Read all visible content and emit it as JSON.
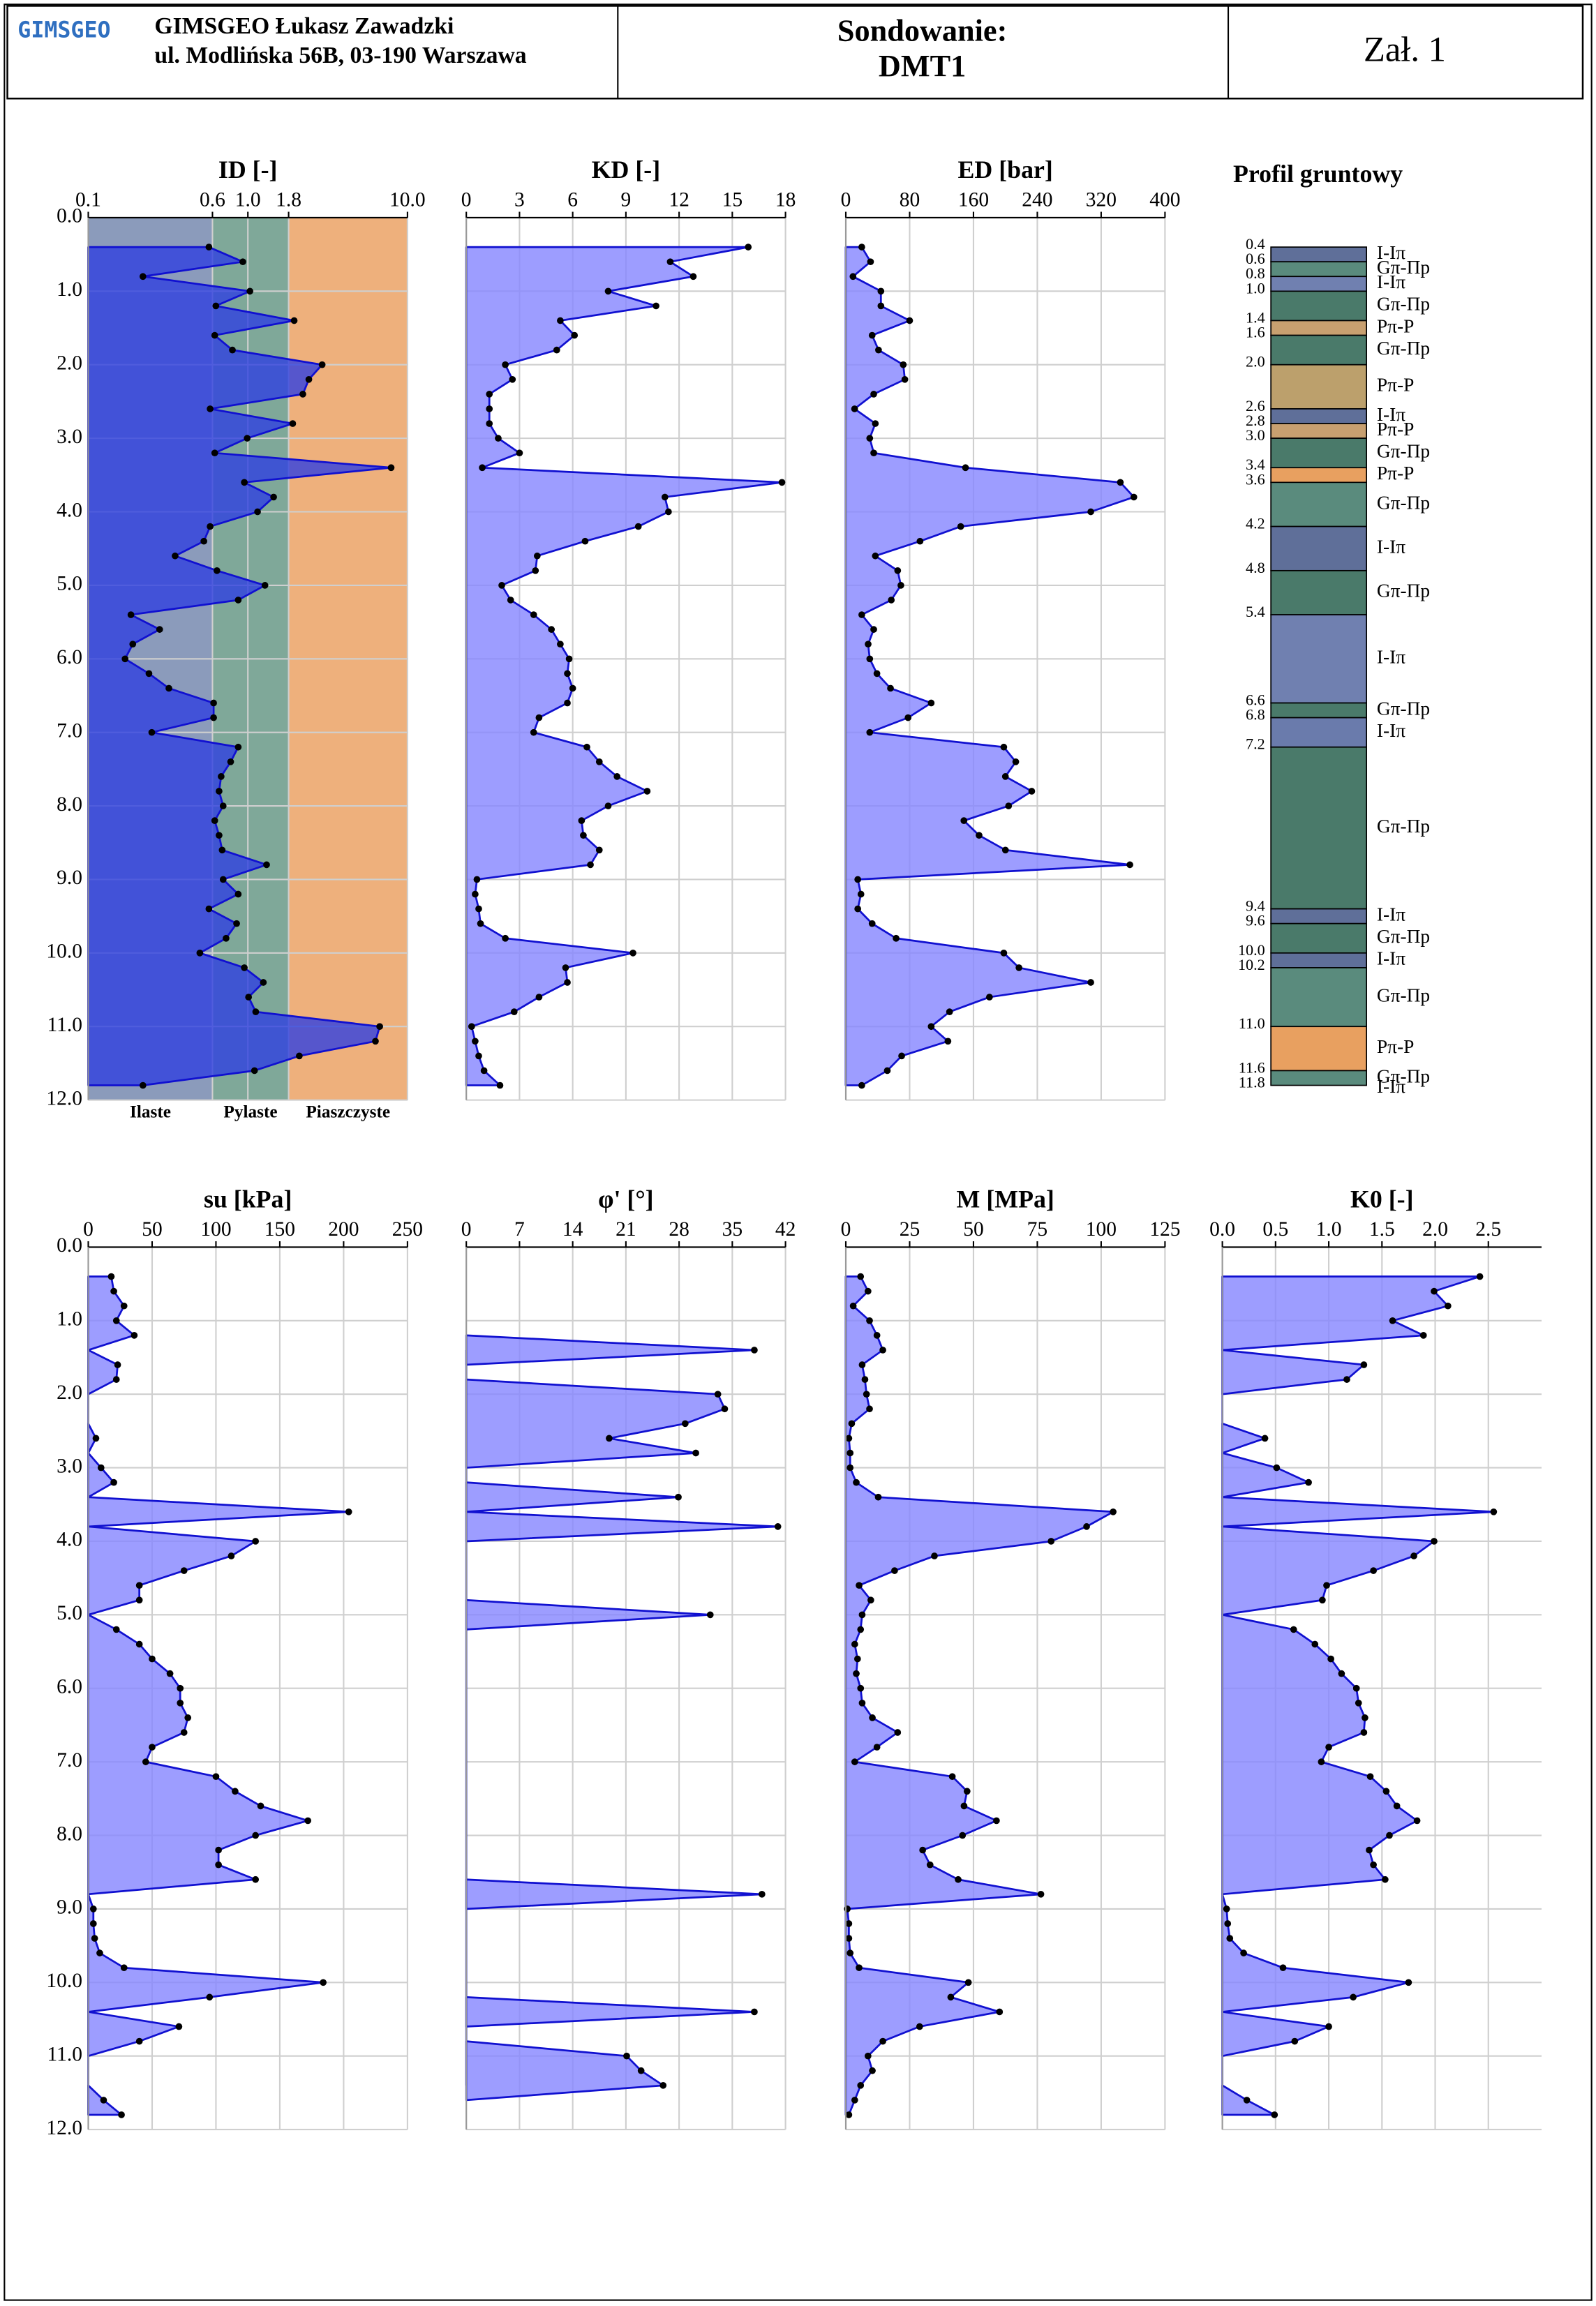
{
  "header": {
    "logo": "GIMSGEO",
    "company": "GIMSGEO Łukasz Zawadzki",
    "address": "ul. Modlińska 56B, 03-190 Warszawa",
    "title_line1": "Sondowanie:",
    "title_line2": "DMT1",
    "attachment": "Zał. 1"
  },
  "depth": {
    "values": [
      0.4,
      0.6,
      0.8,
      1.0,
      1.2,
      1.4,
      1.6,
      1.8,
      2.0,
      2.2,
      2.4,
      2.6,
      2.8,
      3.0,
      3.2,
      3.4,
      3.6,
      3.8,
      4.0,
      4.2,
      4.4,
      4.6,
      4.8,
      5.0,
      5.2,
      5.4,
      5.6,
      5.8,
      6.0,
      6.2,
      6.4,
      6.6,
      6.8,
      7.0,
      7.2,
      7.4,
      7.6,
      7.8,
      8.0,
      8.2,
      8.4,
      8.6,
      8.8,
      9.0,
      9.2,
      9.4,
      9.6,
      9.8,
      10.0,
      10.2,
      10.4,
      10.6,
      10.8,
      11.0,
      11.2,
      11.4,
      11.6,
      11.8
    ],
    "ylim": [
      0,
      12
    ],
    "yticks": [
      {
        "value": 0,
        "label": "0.0"
      },
      {
        "value": 1,
        "label": "1.0"
      },
      {
        "value": 2,
        "label": "2.0"
      },
      {
        "value": 3,
        "label": "3.0"
      },
      {
        "value": 4,
        "label": "4.0"
      },
      {
        "value": 5,
        "label": "5.0"
      },
      {
        "value": 6,
        "label": "6.0"
      },
      {
        "value": 7,
        "label": "7.0"
      },
      {
        "value": 8,
        "label": "8.0"
      },
      {
        "value": 9,
        "label": "9.0"
      },
      {
        "value": 10,
        "label": "10.0"
      },
      {
        "value": 11,
        "label": "11.0"
      },
      {
        "value": 12,
        "label": "12.0"
      }
    ]
  },
  "chart_data": [
    {
      "type": "area",
      "title": "ID [-]",
      "log_x": true,
      "xlim": [
        0.1,
        10
      ],
      "xticks": [
        0.1,
        0.6,
        {
          "value": 1,
          "label": "1.0"
        },
        1.8,
        {
          "value": 10,
          "label": "10.0"
        }
      ],
      "color": "#3040e0",
      "line_color": "#1010d0",
      "grid": true,
      "zones": [
        {
          "name": "Ilaste",
          "from": 0.1,
          "to": 0.6,
          "color": "#8b9bbb"
        },
        {
          "name": "Pylaste",
          "from": 0.6,
          "to": 1.8,
          "color": "#7fa899"
        },
        {
          "name": "Piaszczyste",
          "from": 1.8,
          "to": 10,
          "color": "#eeb07c"
        }
      ],
      "values": [
        0.57,
        0.93,
        0.22,
        1.03,
        0.63,
        1.95,
        0.62,
        0.8,
        2.92,
        2.41,
        2.21,
        0.58,
        1.91,
        0.99,
        0.62,
        7.9,
        0.95,
        1.45,
        1.15,
        0.58,
        0.53,
        0.35,
        0.64,
        1.28,
        0.87,
        0.185,
        0.28,
        0.19,
        0.17,
        0.24,
        0.32,
        0.61,
        0.61,
        0.25,
        0.87,
        0.78,
        0.68,
        0.66,
        0.7,
        0.62,
        0.66,
        0.69,
        1.31,
        0.7,
        0.87,
        0.57,
        0.85,
        0.73,
        0.5,
        0.95,
        1.25,
        1.01,
        1.12,
        6.7,
        6.3,
        2.1,
        1.1,
        0.22
      ]
    },
    {
      "type": "area",
      "title": "KD [-]",
      "xlim": [
        0,
        18
      ],
      "xticks": [
        0,
        3,
        6,
        9,
        12,
        15,
        18
      ],
      "color": "#8585ff",
      "line_color": "#1010d0",
      "grid": true,
      "values": [
        15.9,
        11.5,
        12.8,
        8.0,
        10.7,
        5.3,
        6.1,
        5.1,
        2.2,
        2.6,
        1.3,
        1.3,
        1.3,
        1.8,
        3.0,
        0.9,
        17.8,
        11.2,
        11.4,
        9.7,
        6.7,
        4.0,
        3.9,
        2.0,
        2.5,
        3.8,
        4.8,
        5.3,
        5.8,
        5.7,
        6.0,
        5.7,
        4.1,
        3.8,
        6.8,
        7.5,
        8.5,
        10.2,
        8.0,
        6.5,
        6.6,
        7.5,
        7.0,
        0.6,
        0.5,
        0.7,
        0.8,
        2.2,
        9.4,
        5.6,
        5.7,
        4.1,
        2.7,
        0.3,
        0.5,
        0.7,
        1.0,
        1.9
      ]
    },
    {
      "type": "area",
      "title": "ED [bar]",
      "xlim": [
        0,
        400
      ],
      "xticks": [
        0,
        80,
        160,
        240,
        320,
        400
      ],
      "color": "#8585ff",
      "line_color": "#1010d0",
      "grid": true,
      "values": [
        20,
        31,
        9,
        44,
        44,
        80,
        33,
        41,
        72,
        74,
        35,
        11,
        37,
        30,
        35,
        150,
        344,
        361,
        307,
        144,
        93,
        37,
        65,
        69,
        57,
        20,
        35,
        28,
        30,
        39,
        56,
        107,
        78,
        30,
        198,
        213,
        200,
        233,
        204,
        148,
        167,
        200,
        356,
        15,
        19,
        15,
        33,
        63,
        198,
        217,
        307,
        180,
        130,
        107,
        128,
        70,
        52,
        20
      ]
    },
    {
      "type": "area",
      "title": "su [kPa]",
      "xlim": [
        0,
        250
      ],
      "xticks": [
        0,
        50,
        100,
        150,
        200,
        250
      ],
      "color": "#8585ff",
      "line_color": "#1010d0",
      "grid": true,
      "values": [
        18,
        20,
        28,
        22,
        36,
        null,
        23,
        22,
        null,
        null,
        null,
        6,
        null,
        10,
        20,
        null,
        204,
        null,
        131,
        112,
        75,
        40,
        40,
        null,
        22,
        40,
        50,
        64,
        72,
        72,
        78,
        75,
        50,
        45,
        100,
        115,
        135,
        172,
        131,
        102,
        102,
        131,
        null,
        4,
        4,
        5,
        9,
        28,
        184,
        95,
        null,
        71,
        40,
        null,
        null,
        null,
        12,
        26
      ]
    },
    {
      "type": "area",
      "title": "φ' [°]",
      "xlim": [
        0,
        42
      ],
      "xticks": [
        0,
        7,
        14,
        21,
        28,
        35,
        42
      ],
      "color": "#8585ff",
      "line_color": "#1010d0",
      "grid": true,
      "values": [
        null,
        null,
        null,
        null,
        null,
        37.9,
        null,
        null,
        33.1,
        34.0,
        28.8,
        18.8,
        30.2,
        null,
        null,
        27.9,
        null,
        41.0,
        null,
        null,
        null,
        null,
        null,
        32.1,
        null,
        null,
        null,
        null,
        null,
        null,
        null,
        null,
        null,
        null,
        null,
        null,
        null,
        null,
        null,
        null,
        null,
        null,
        38.9,
        null,
        null,
        null,
        null,
        null,
        null,
        null,
        37.9,
        null,
        null,
        21.1,
        23.0,
        25.9,
        null,
        null
      ]
    },
    {
      "type": "area",
      "title": "M [MPa]",
      "xlim": [
        0,
        125
      ],
      "xticks": [
        0,
        25,
        50,
        75,
        100,
        125
      ],
      "color": "#8585ff",
      "line_color": "#1010d0",
      "grid": true,
      "values": [
        5.8,
        8.7,
        2.9,
        9.3,
        12.2,
        14.5,
        6.4,
        7.5,
        8.1,
        9.3,
        2.3,
        1.2,
        1.7,
        1.7,
        4.1,
        12.7,
        104.7,
        94.3,
        80.4,
        34.7,
        19.1,
        5.2,
        9.8,
        6.4,
        5.8,
        3.5,
        4.6,
        4.1,
        5.8,
        6.4,
        10.4,
        20.3,
        12.2,
        3.5,
        41.7,
        47.5,
        46.3,
        59.0,
        45.7,
        30.1,
        33.0,
        44.0,
        76.4,
        0.6,
        1.2,
        1.2,
        1.7,
        5.2,
        48.0,
        41.1,
        60.2,
        28.9,
        14.5,
        8.7,
        10.4,
        5.8,
        3.5,
        1.2
      ]
    },
    {
      "type": "area",
      "title": "K0 [-]",
      "xlim": [
        0,
        3
      ],
      "xticks": [
        {
          "value": 0,
          "label": "0.0"
        },
        0.5,
        {
          "value": 1,
          "label": "1.0"
        },
        1.5,
        {
          "value": 2,
          "label": "2.0"
        },
        2.5
      ],
      "color": "#8585ff",
      "line_color": "#1010d0",
      "grid": true,
      "values": [
        2.42,
        1.99,
        2.12,
        1.6,
        1.89,
        null,
        1.33,
        1.17,
        null,
        null,
        null,
        0.4,
        null,
        0.51,
        0.81,
        null,
        2.55,
        null,
        1.99,
        1.8,
        1.42,
        0.98,
        0.94,
        null,
        0.67,
        0.87,
        1.02,
        1.12,
        1.26,
        1.28,
        1.34,
        1.33,
        1.0,
        0.93,
        1.39,
        1.54,
        1.64,
        1.83,
        1.57,
        1.38,
        1.42,
        1.53,
        null,
        0.04,
        0.05,
        0.07,
        0.2,
        0.57,
        1.75,
        1.23,
        null,
        1.0,
        0.68,
        null,
        null,
        null,
        0.23,
        0.49
      ]
    }
  ],
  "profile": {
    "title": "Profil gruntowy",
    "boundaries": [
      0.4,
      0.6,
      0.8,
      {
        "value": 1,
        "label": "1.0"
      },
      1.4,
      1.6,
      {
        "value": 2,
        "label": "2.0"
      },
      2.6,
      2.8,
      {
        "value": 3,
        "label": "3.0"
      },
      3.4,
      3.6,
      4.2,
      4.8,
      5.4,
      6.6,
      6.8,
      7.2,
      9.4,
      9.6,
      {
        "value": 10,
        "label": "10.0"
      },
      10.2,
      {
        "value": 11,
        "label": "11.0"
      },
      11.6,
      11.8
    ],
    "layers": [
      {
        "name": "I-Iπ",
        "color": "#5f6f99"
      },
      {
        "name": "Gπ-Πp",
        "color": "#5a8b7d"
      },
      {
        "name": "I-Iπ",
        "color": "#7080b0"
      },
      {
        "name": "Gπ-Πp",
        "color": "#4a7a6a"
      },
      {
        "name": "Pπ-P",
        "color": "#c8a070"
      },
      {
        "name": "Gπ-Πp",
        "color": "#4a7a6a"
      },
      {
        "name": "Pπ-P",
        "color": "#bca06c"
      },
      {
        "name": "I-Iπ",
        "color": "#5f6f99"
      },
      {
        "name": "Pπ-P",
        "color": "#c8a070"
      },
      {
        "name": "Gπ-Πp",
        "color": "#4a7a6a"
      },
      {
        "name": "Pπ-P",
        "color": "#e8a060"
      },
      {
        "name": "Gπ-Πp",
        "color": "#5a8b7d"
      },
      {
        "name": "I-Iπ",
        "color": "#5f6f99"
      },
      {
        "name": "Gπ-Πp",
        "color": "#4a7a6a"
      },
      {
        "name": "I-Iπ",
        "color": "#7080b0"
      },
      {
        "name": "Gπ-Πp",
        "color": "#4a7a6a"
      },
      {
        "name": "I-Iπ",
        "color": "#6a7bac"
      },
      {
        "name": "Gπ-Πp",
        "color": "#4a7a6a"
      },
      {
        "name": "I-Iπ",
        "color": "#5f6f99"
      },
      {
        "name": "Gπ-Πp",
        "color": "#4a7a6a"
      },
      {
        "name": "I-Iπ",
        "color": "#5f6f99"
      },
      {
        "name": "Gπ-Πp",
        "color": "#5a8b7d"
      },
      {
        "name": "Pπ-P",
        "color": "#e8a060"
      },
      {
        "name": "Gπ-Πp",
        "color": "#5a8b7d"
      }
    ],
    "base_layer": "I-Iπ"
  }
}
